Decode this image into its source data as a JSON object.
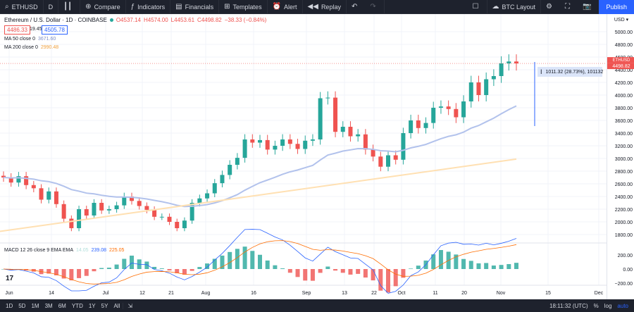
{
  "toolbar": {
    "symbol": "ETHUSD",
    "interval": "D",
    "compare": "Compare",
    "indicators": "Indicators",
    "financials": "Financials",
    "templates": "Templates",
    "alert": "Alert",
    "replay": "Replay",
    "layout": "BTC Layout",
    "publish": "Publish"
  },
  "legend": {
    "title": "Ethereum / U.S. Dollar · 1D · COINBASE",
    "o": "O4537.14",
    "h": "H4574.00",
    "l": "L4453.61",
    "c": "C4498.82",
    "chg": "−38.33 (−0.84%)",
    "bid": "4486.33",
    "spread": "19.45",
    "ask": "4505.78"
  },
  "indicators": {
    "ma50_label": "MA 50 close 0",
    "ma50_val": "3671.60",
    "ma200_label": "MA 200 close 0",
    "ma200_val": "2990.48",
    "macd_label": "MACD 12 26 close 9 EMA EMA",
    "macd_hist": "14.05",
    "macd_val": "239.08",
    "signal_val": "225.05"
  },
  "price_axis": {
    "currency": "USD",
    "ticks": [
      "5000.00",
      "4800.00",
      "4600.00",
      "4400.00",
      "4200.00",
      "4000.00",
      "3800.00",
      "3600.00",
      "3400.00",
      "3200.00",
      "3000.00",
      "2800.00",
      "2600.00",
      "2400.00",
      "2200.00",
      "2000.00",
      "1800.00"
    ],
    "last_symbol": "ETHUSD",
    "last_price": "4498.82",
    "macd_ticks": [
      "200.00",
      "0.00",
      "−200.00"
    ]
  },
  "measure": {
    "text": "1011.32 (28.73%), 101132"
  },
  "time_axis": [
    "Jun",
    "14",
    "Jul",
    "12",
    "21",
    "Aug",
    "16",
    "Sep",
    "13",
    "22",
    "Oct",
    "11",
    "20",
    "Nov",
    "15",
    "Dec"
  ],
  "bottom": {
    "periods": [
      "1D",
      "5D",
      "1M",
      "3M",
      "6M",
      "YTD",
      "1Y",
      "5Y",
      "All"
    ],
    "time": "18:11:32 (UTC)",
    "pct": "%",
    "log": "log",
    "auto": "auto"
  },
  "colors": {
    "up": "#26a69a",
    "down": "#ef5350",
    "ma50": "#b2c2ec",
    "ma200": "#ffe0b2",
    "macd": "#2962ff",
    "signal": "#ff6d00"
  },
  "chart_data": {
    "type": "candlestick",
    "series": [
      {
        "name": "ETHUSD",
        "ohlc_close_approx": [
          2700,
          2620,
          2720,
          2580,
          2530,
          2350,
          2480,
          2280,
          2050,
          1900,
          2200,
          2100,
          2300,
          2180,
          2200,
          2260,
          2400,
          2330,
          2250,
          2190,
          2080,
          2080,
          2000,
          1900,
          2020,
          2300,
          2370,
          2450,
          2610,
          2740,
          2900,
          3010,
          3300,
          3250,
          3290,
          3140,
          3200,
          3300,
          3230,
          3150,
          3280,
          3300,
          3950,
          3960,
          3420,
          3500,
          3350,
          3380,
          3140,
          3030,
          2870,
          3050,
          2980,
          3400,
          3600,
          3480,
          3560,
          3800,
          3820,
          3780,
          3650,
          3900,
          4200,
          4000,
          4250,
          4300,
          4500,
          4530,
          4500
        ]
      },
      {
        "name": "MA 50 close 0",
        "last": 3671.6
      },
      {
        "name": "MA 200 close 0",
        "last": 2990.48
      }
    ],
    "ylim": [
      1700,
      5100
    ],
    "macd": {
      "macd": 239.08,
      "signal": 225.05,
      "hist": 14.05
    }
  }
}
